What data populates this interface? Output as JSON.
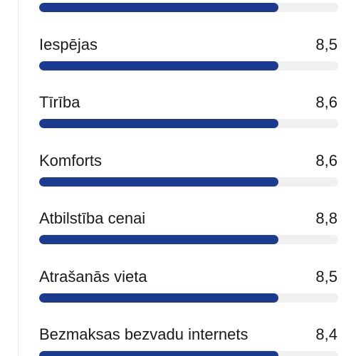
{
  "bar_color": "#1a3b8f",
  "track_color": "#f0f0f0",
  "top_partial_bar": {
    "fill_fraction": 0.8
  },
  "categories": [
    {
      "label": "Iespējas",
      "score": "8,5",
      "fill_fraction": 0.8
    },
    {
      "label": "Tīrība",
      "score": "8,6",
      "fill_fraction": 0.8
    },
    {
      "label": "Komforts",
      "score": "8,6",
      "fill_fraction": 0.8
    },
    {
      "label": "Atbilstība cenai",
      "score": "8,8",
      "fill_fraction": 0.8
    },
    {
      "label": "Atrašanās vieta",
      "score": "8,5",
      "fill_fraction": 0.8
    },
    {
      "label": "Bezmaksas bezvadu internets",
      "score": "8,4",
      "fill_fraction": 0.8
    }
  ]
}
